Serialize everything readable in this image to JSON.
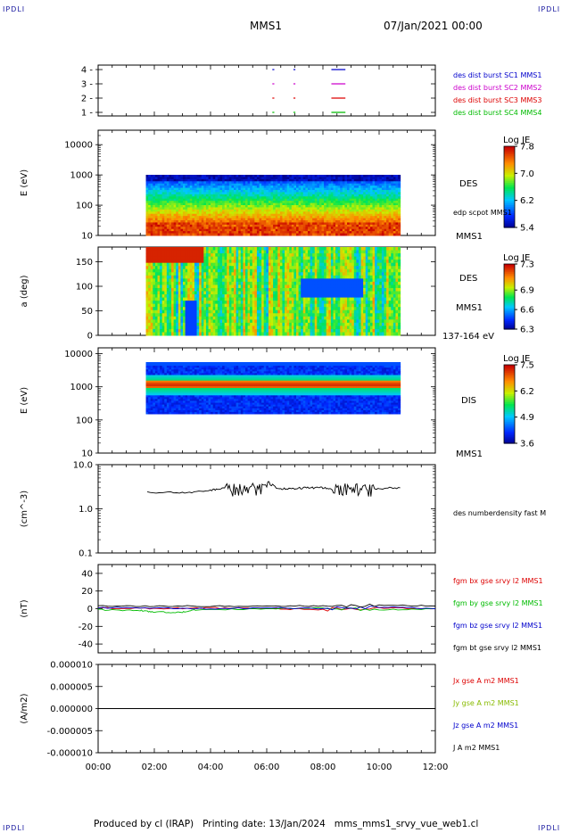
{
  "corner_label": "IPDLI",
  "header": {
    "title": "MMS1",
    "datetime": "07/Jan/2021 00:00"
  },
  "footer": "Produced by cl (IRAP)   Printing date: 13/Jan/2024   mms_mms1_srvy_vue_web1.cl",
  "chart_data": [
    {
      "type": "line",
      "id": "availability",
      "yticks": [
        "1",
        "2",
        "3",
        "4"
      ],
      "legend": [
        {
          "label": "des dist burst SC1 MMS1",
          "color": "#0000cc"
        },
        {
          "label": "des dist burst SC2 MMS2",
          "color": "#cc00cc"
        },
        {
          "label": "des dist burst SC3 MMS3",
          "color": "#dd0000"
        },
        {
          "label": "des dist burst SC4 MMS4",
          "color": "#00bb00"
        }
      ],
      "burst_intervals_hours": [
        [
          6.2,
          6.27
        ],
        [
          6.95,
          7.02
        ],
        [
          8.3,
          8.8
        ]
      ]
    },
    {
      "type": "heatmap",
      "id": "des-energy",
      "ylabel": "E (eV)",
      "yscale": "log",
      "ylim": [
        10,
        30000
      ],
      "yticks": [
        "10",
        "100",
        "1000",
        "10000"
      ],
      "data_range_hours": [
        1.7,
        10.75
      ],
      "instrument": "DES",
      "side_label": "MMS1",
      "overlay_label": "edp scpot MMS1",
      "colorbar": {
        "title": "Log JE",
        "ticks": [
          "7.8",
          "7.0",
          "6.2",
          "5.4"
        ],
        "range": [
          5.4,
          7.8
        ]
      }
    },
    {
      "type": "heatmap",
      "id": "des-pitch",
      "ylabel": "a (deg)",
      "ylim": [
        0,
        180
      ],
      "yticks": [
        "0",
        "50",
        "100",
        "150"
      ],
      "data_range_hours": [
        1.7,
        10.75
      ],
      "instrument": "DES",
      "side_label": "MMS1",
      "energy_label": "137-164 eV",
      "colorbar": {
        "title": "Log JE",
        "ticks": [
          "7.3",
          "6.9",
          "6.6",
          "6.3"
        ],
        "range": [
          6.3,
          7.3
        ]
      }
    },
    {
      "type": "heatmap",
      "id": "dis-energy",
      "ylabel": "E (eV)",
      "yscale": "log",
      "ylim": [
        10,
        15000
      ],
      "yticks": [
        "10",
        "100",
        "1000",
        "10000"
      ],
      "data_range_hours": [
        1.7,
        10.75
      ],
      "instrument": "DIS",
      "side_label": "MMS1",
      "colorbar": {
        "title": "Log JE",
        "ticks": [
          "7.5",
          "6.2",
          "4.9",
          "3.6"
        ],
        "range": [
          3.6,
          7.5
        ]
      }
    },
    {
      "type": "line",
      "id": "density",
      "ylabel": "(cm^-3)",
      "yscale": "log",
      "ylim": [
        0.1,
        10
      ],
      "yticks": [
        "10.0",
        "1.0",
        "0.1"
      ],
      "legend": [
        {
          "label": "des numberdensity fast M",
          "color": "#000000"
        }
      ],
      "series": [
        {
          "name": "des numberdensity fast M",
          "x": [
            1.75,
            3.0,
            4.0,
            4.5,
            5.0,
            5.5,
            6.0,
            6.5,
            7.0,
            7.5,
            8.0,
            8.5,
            9.0,
            9.5,
            10.0,
            10.75
          ],
          "y": [
            2.4,
            2.3,
            2.6,
            2.9,
            2.7,
            3.0,
            3.2,
            2.8,
            2.9,
            3.0,
            3.0,
            2.9,
            2.8,
            2.7,
            2.9,
            3.0
          ]
        }
      ]
    },
    {
      "type": "line",
      "id": "magnetic-field",
      "ylabel": "(nT)",
      "ylim": [
        -50,
        50
      ],
      "yticks": [
        "40",
        "20",
        "0",
        "-20",
        "-40"
      ],
      "legend": [
        {
          "label": "fgm bx gse srvy l2 MMS1",
          "color": "#dd0000"
        },
        {
          "label": "fgm by gse srvy l2 MMS1",
          "color": "#00bb00"
        },
        {
          "label": "fgm bz gse srvy l2 MMS1",
          "color": "#0000cc"
        },
        {
          "label": "fgm bt gse srvy l2 MMS1",
          "color": "#000000"
        }
      ],
      "series": [
        {
          "name": "fgm bx gse srvy l2 MMS1",
          "x": [
            0,
            2,
            4,
            6,
            8,
            10,
            12
          ],
          "y": [
            1,
            0,
            1,
            0,
            -1,
            1,
            0
          ]
        },
        {
          "name": "fgm by gse srvy l2 MMS1",
          "x": [
            0,
            1.5,
            2.0,
            3.0,
            3.5,
            6,
            8,
            10,
            12
          ],
          "y": [
            -1,
            -2,
            -4,
            -4,
            -1,
            0,
            1,
            -1,
            0
          ]
        },
        {
          "name": "fgm bz gse srvy l2 MMS1",
          "x": [
            0,
            2,
            4,
            6,
            8,
            10,
            12
          ],
          "y": [
            1,
            1,
            0,
            1,
            0,
            2,
            0
          ]
        },
        {
          "name": "fgm bt gse srvy l2 MMS1",
          "x": [
            0,
            2,
            4,
            6,
            8,
            10,
            12
          ],
          "y": [
            3,
            3,
            3,
            3,
            3,
            4,
            3
          ]
        }
      ]
    },
    {
      "type": "line",
      "id": "current-density",
      "ylabel": "(A/m2)",
      "ylim": [
        -1e-05,
        1e-05
      ],
      "yticks": [
        "0.000010",
        "0.000005",
        "0.000000",
        "-0.000005",
        "-0.000010"
      ],
      "legend": [
        {
          "label": "Jx gse A m2 MMS1",
          "color": "#dd0000"
        },
        {
          "label": "Jy gse A m2 MMS1",
          "color": "#88bb00"
        },
        {
          "label": "Jz gse A m2 MMS1",
          "color": "#0000cc"
        },
        {
          "label": "J A m2 MMS1",
          "color": "#000000"
        }
      ],
      "series": [
        {
          "name": "J A m2 MMS1",
          "x": [
            0,
            12
          ],
          "y": [
            0,
            0
          ]
        }
      ]
    }
  ],
  "x_axis": {
    "xlim_hours": [
      0,
      12
    ],
    "ticks": [
      "00:00",
      "02:00",
      "04:00",
      "06:00",
      "08:00",
      "10:00",
      "12:00"
    ]
  }
}
